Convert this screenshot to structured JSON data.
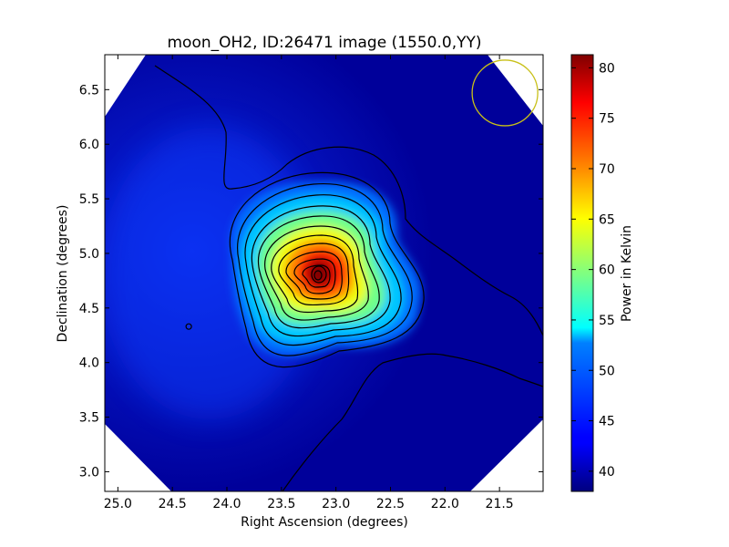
{
  "chart_data": {
    "type": "heatmap",
    "title": "moon_OH2, ID:26471 image (1550.0,YY)",
    "xlabel": "Right Ascension (degrees)",
    "ylabel": "Declination (degrees)",
    "xlim": [
      25.12,
      21.1
    ],
    "ylim": [
      2.82,
      6.82
    ],
    "x_ticks": [
      25.0,
      24.5,
      24.0,
      23.5,
      23.0,
      22.5,
      22.0,
      21.5
    ],
    "y_ticks": [
      3.0,
      3.5,
      4.0,
      4.5,
      5.0,
      5.5,
      6.0,
      6.5
    ],
    "x_tick_labels": [
      "25.0",
      "24.5",
      "24.0",
      "23.5",
      "23.0",
      "22.5",
      "22.0",
      "21.5"
    ],
    "y_tick_labels": [
      "3.0",
      "3.5",
      "4.0",
      "4.5",
      "5.0",
      "5.5",
      "6.0",
      "6.5"
    ],
    "colorbar": {
      "label": "Power in Kelvin",
      "min": 38,
      "max": 81.3,
      "ticks": [
        40,
        45,
        50,
        55,
        60,
        65,
        70,
        75,
        80
      ],
      "tick_labels": [
        "40",
        "45",
        "50",
        "55",
        "60",
        "65",
        "70",
        "75",
        "80"
      ],
      "colormap": "jet"
    },
    "source": {
      "ra": 23.08,
      "dec": 4.8,
      "peak_kelvin": 81,
      "background_kelvin": 39
    },
    "beam_circle": {
      "ra": 21.45,
      "dec": 6.47,
      "color": "#c8c018"
    },
    "small_contour_marker": {
      "ra": 24.35,
      "dec": 4.33
    },
    "grid": false
  }
}
